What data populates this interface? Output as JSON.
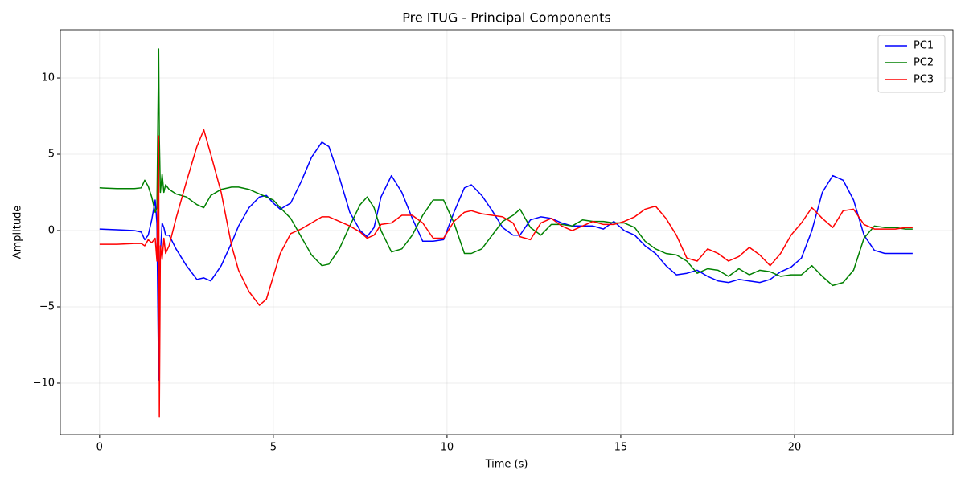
{
  "chart_data": {
    "type": "line",
    "title": "Pre ITUG - Principal Components",
    "x_label": "Time (s)",
    "y_label": "Amplitude",
    "xlim": [
      -1.13,
      24.56
    ],
    "ylim": [
      -13.37,
      13.16
    ],
    "xticks": [
      0,
      5,
      10,
      15,
      20
    ],
    "yticks": [
      {
        "value": -10,
        "label": "−10"
      },
      {
        "value": -5,
        "label": "−5"
      },
      0,
      5,
      10
    ],
    "grid": true,
    "legend": "upper-right",
    "x": [
      0,
      0.5,
      1.0,
      1.2,
      1.3,
      1.4,
      1.5,
      1.6,
      1.65,
      1.7,
      1.72,
      1.75,
      1.8,
      1.85,
      1.9,
      2.0,
      2.2,
      2.5,
      2.8,
      3.0,
      3.2,
      3.5,
      3.8,
      4.0,
      4.3,
      4.6,
      4.8,
      5.0,
      5.2,
      5.5,
      5.8,
      6.1,
      6.4,
      6.6,
      6.9,
      7.2,
      7.5,
      7.7,
      7.9,
      8.1,
      8.4,
      8.7,
      9.0,
      9.3,
      9.6,
      9.9,
      10.2,
      10.5,
      10.7,
      11.0,
      11.3,
      11.6,
      11.9,
      12.1,
      12.4,
      12.7,
      13.0,
      13.3,
      13.6,
      13.9,
      14.2,
      14.5,
      14.8,
      15.1,
      15.4,
      15.7,
      16.0,
      16.3,
      16.6,
      16.9,
      17.2,
      17.5,
      17.8,
      18.1,
      18.4,
      18.7,
      19.0,
      19.3,
      19.6,
      19.9,
      20.2,
      20.5,
      20.8,
      21.1,
      21.4,
      21.7,
      22.0,
      22.3,
      22.6,
      22.9,
      23.2,
      23.4
    ],
    "series": [
      {
        "name": "PC1",
        "color": "#0000ff",
        "values": [
          0.1,
          0.05,
          0,
          -0.1,
          -0.6,
          -0.3,
          0.7,
          2.0,
          0.5,
          -9.8,
          -3,
          -1.5,
          0.5,
          0.2,
          -0.3,
          -0.3,
          -1.2,
          -2.3,
          -3.2,
          -3.1,
          -3.3,
          -2.3,
          -0.8,
          0.3,
          1.5,
          2.2,
          2.3,
          1.8,
          1.4,
          1.8,
          3.2,
          4.8,
          5.8,
          5.5,
          3.5,
          1.2,
          0,
          -0.4,
          0.2,
          2.2,
          3.6,
          2.5,
          0.8,
          -0.7,
          -0.7,
          -0.6,
          1.2,
          2.8,
          3.0,
          2.3,
          1.3,
          0.2,
          -0.3,
          -0.3,
          0.7,
          0.9,
          0.8,
          0.5,
          0.3,
          0.3,
          0.3,
          0.1,
          0.6,
          0,
          -0.3,
          -1.0,
          -1.5,
          -2.3,
          -2.9,
          -2.8,
          -2.6,
          -3.0,
          -3.3,
          -3.4,
          -3.2,
          -3.3,
          -3.4,
          -3.2,
          -2.7,
          -2.4,
          -1.8,
          0,
          2.5,
          3.6,
          3.3,
          2.0,
          -0.3,
          -1.3,
          -1.5,
          -1.5,
          -1.5,
          -1.5
        ]
      },
      {
        "name": "PC2",
        "color": "#008000",
        "values": [
          2.8,
          2.75,
          2.75,
          2.8,
          3.3,
          2.9,
          2.2,
          1.2,
          1.5,
          11.9,
          6,
          2.5,
          3.7,
          2.5,
          3.0,
          2.7,
          2.4,
          2.2,
          1.7,
          1.5,
          2.3,
          2.7,
          2.85,
          2.85,
          2.7,
          2.4,
          2.2,
          2.0,
          1.5,
          0.8,
          -0.4,
          -1.6,
          -2.3,
          -2.2,
          -1.2,
          0.3,
          1.7,
          2.2,
          1.5,
          0,
          -1.4,
          -1.2,
          -0.3,
          1.0,
          2.0,
          2.0,
          0.5,
          -1.5,
          -1.5,
          -1.2,
          -0.3,
          0.6,
          1.0,
          1.4,
          0.2,
          -0.3,
          0.4,
          0.4,
          0.3,
          0.7,
          0.6,
          0.6,
          0.5,
          0.5,
          0.2,
          -0.7,
          -1.2,
          -1.5,
          -1.6,
          -2.0,
          -2.8,
          -2.5,
          -2.6,
          -3.0,
          -2.5,
          -2.9,
          -2.6,
          -2.7,
          -3.0,
          -2.9,
          -2.9,
          -2.3,
          -3.0,
          -3.6,
          -3.4,
          -2.6,
          -0.5,
          0.3,
          0.2,
          0.2,
          0.1,
          0.1
        ]
      },
      {
        "name": "PC3",
        "color": "#ff0000",
        "values": [
          -0.9,
          -0.9,
          -0.85,
          -0.85,
          -1.0,
          -0.6,
          -0.8,
          -0.5,
          -2,
          6.2,
          -12.2,
          -1,
          -1.9,
          -0.5,
          -1.5,
          -1.0,
          0.8,
          3.2,
          5.5,
          6.6,
          5.0,
          2.5,
          -1.0,
          -2.6,
          -4.0,
          -4.9,
          -4.5,
          -3.0,
          -1.5,
          -0.2,
          0.1,
          0.5,
          0.9,
          0.9,
          0.6,
          0.3,
          -0.1,
          -0.5,
          -0.3,
          0.4,
          0.5,
          1.0,
          1.0,
          0.5,
          -0.5,
          -0.5,
          0.6,
          1.2,
          1.3,
          1.1,
          1.0,
          0.9,
          0.5,
          -0.4,
          -0.6,
          0.5,
          0.8,
          0.3,
          0,
          0.3,
          0.6,
          0.4,
          0.4,
          0.6,
          0.9,
          1.4,
          1.6,
          0.8,
          -0.3,
          -1.8,
          -2.0,
          -1.2,
          -1.5,
          -2.0,
          -1.7,
          -1.1,
          -1.6,
          -2.3,
          -1.5,
          -0.3,
          0.5,
          1.5,
          0.8,
          0.2,
          1.3,
          1.4,
          0.4,
          0.1,
          0.1,
          0.1,
          0.2,
          0.2
        ]
      }
    ]
  }
}
